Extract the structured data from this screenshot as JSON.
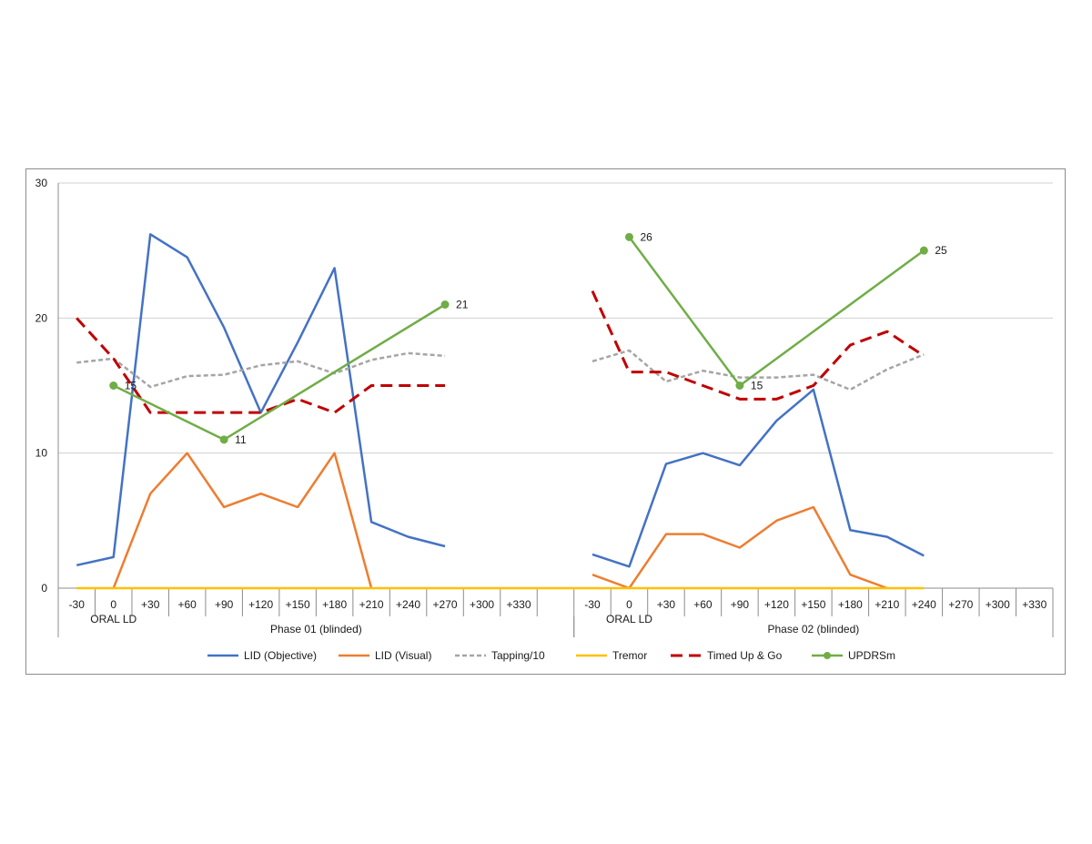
{
  "chart_data": {
    "type": "line",
    "title": "",
    "xlabel": "",
    "ylabel": "",
    "ylim": [
      0,
      30
    ],
    "y_ticks": [
      "0",
      "10",
      "20",
      "30"
    ],
    "grid": true,
    "legend_position": "bottom",
    "categories": [
      "-30",
      "0",
      "+30",
      "+60",
      "+90",
      "+120",
      "+150",
      "+180",
      "+210",
      "+240",
      "+270",
      "+300",
      "+330",
      "",
      "-30",
      "0",
      "+30",
      "+60",
      "+90",
      "+120",
      "+150",
      "+180",
      "+210",
      "+240",
      "+270",
      "+300",
      "+330"
    ],
    "sub_labels": [
      {
        "text": "ORAL LD",
        "index": 1
      },
      {
        "text": "ORAL LD",
        "index": 15
      }
    ],
    "groups": [
      {
        "label": "Phase 01 (blinded)",
        "start": 0,
        "end": 13
      },
      {
        "label": "Phase 02 (blinded)",
        "start": 14,
        "end": 26
      }
    ],
    "series": [
      {
        "name": "LID (Objective)",
        "color": "#4472C4",
        "dash": "solid",
        "markers": false,
        "values": [
          1.7,
          2.3,
          26.2,
          24.5,
          19.3,
          13.0,
          18.2,
          23.7,
          4.9,
          3.8,
          3.1,
          null,
          null,
          null,
          2.5,
          1.6,
          9.2,
          10.0,
          9.1,
          12.4,
          14.7,
          4.3,
          3.8,
          2.4,
          null,
          null,
          null
        ]
      },
      {
        "name": "LID (Visual)",
        "color": "#ED7D31",
        "dash": "solid",
        "markers": false,
        "values": [
          null,
          0,
          7,
          10,
          6,
          7,
          6,
          10,
          0,
          null,
          null,
          null,
          null,
          null,
          1,
          0,
          4,
          4,
          3,
          5,
          6,
          1,
          0,
          null,
          null,
          null,
          null
        ]
      },
      {
        "name": "Tapping/10",
        "color": "#A5A5A5",
        "dash": "dash",
        "markers": false,
        "values": [
          16.7,
          17.0,
          14.9,
          15.7,
          15.8,
          16.5,
          16.8,
          15.9,
          16.9,
          17.4,
          17.2,
          null,
          null,
          null,
          16.8,
          17.6,
          15.3,
          16.1,
          15.6,
          15.6,
          15.8,
          14.7,
          16.2,
          17.3,
          null,
          null,
          null
        ]
      },
      {
        "name": "Tremor",
        "color": "#FFC000",
        "dash": "solid",
        "markers": false,
        "values": [
          0,
          0,
          0,
          0,
          0,
          0,
          0,
          0,
          0,
          0,
          0,
          0,
          0,
          0,
          0,
          0,
          0,
          0,
          0,
          0,
          0,
          0,
          0,
          0,
          null,
          null,
          null
        ]
      },
      {
        "name": "Timed Up & Go",
        "color": "#C00000",
        "dash": "longdash",
        "markers": false,
        "values": [
          20,
          17,
          13,
          13,
          13,
          13,
          14,
          13,
          15,
          15,
          15,
          null,
          null,
          null,
          22,
          16,
          16,
          15,
          14,
          14,
          15,
          18,
          19,
          17.2,
          null,
          null,
          null
        ]
      },
      {
        "name": "UPDRSm",
        "color": "#70AD47",
        "dash": "solid",
        "markers": true,
        "values": [
          null,
          15,
          null,
          null,
          11,
          null,
          null,
          null,
          null,
          null,
          21,
          null,
          null,
          null,
          null,
          26,
          null,
          null,
          15,
          null,
          null,
          null,
          null,
          25,
          null,
          null,
          null
        ],
        "data_labels": [
          {
            "index": 1,
            "text": "15"
          },
          {
            "index": 4,
            "text": "11"
          },
          {
            "index": 10,
            "text": "21"
          },
          {
            "index": 15,
            "text": "26"
          },
          {
            "index": 18,
            "text": "15"
          },
          {
            "index": 23,
            "text": "25"
          }
        ]
      }
    ]
  }
}
